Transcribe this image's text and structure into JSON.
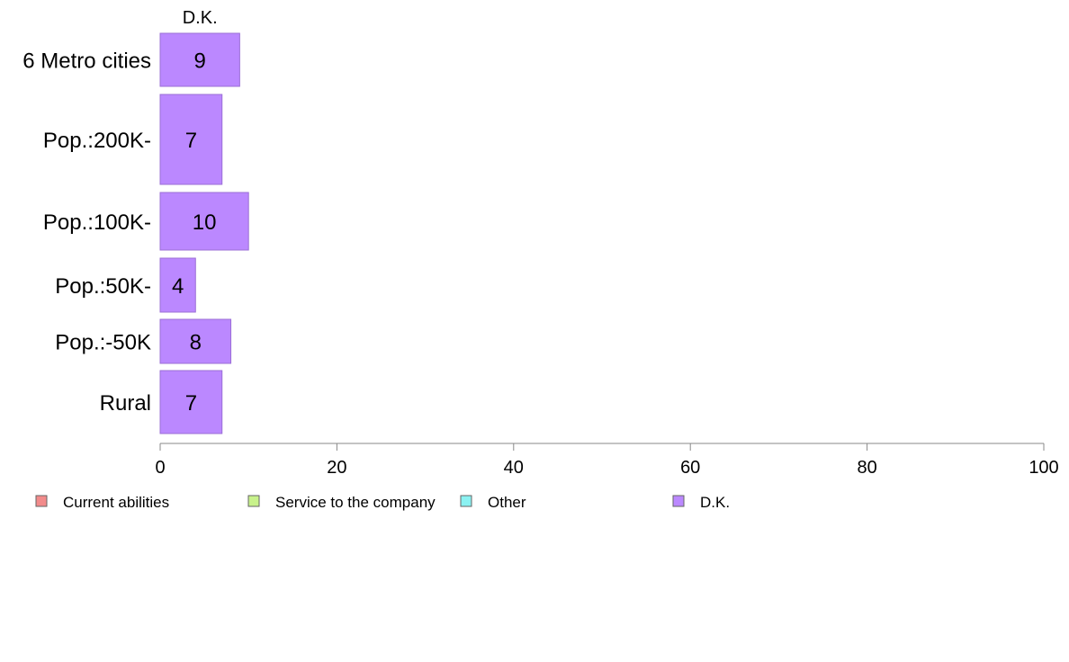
{
  "chart_data": {
    "type": "bar",
    "orientation": "horizontal",
    "stacked": true,
    "categories": [
      "6 Metro cities",
      "Pop.:200K-",
      "Pop.:100K-",
      "Pop.:50K-",
      "Pop.:-50K",
      "Rural"
    ],
    "series": [
      {
        "name": "Current abilities",
        "color": "#f28b8b",
        "values": [
          null,
          null,
          null,
          null,
          null,
          null
        ]
      },
      {
        "name": "Service to the company",
        "color": "#c8f28b",
        "values": [
          null,
          null,
          null,
          null,
          null,
          null
        ]
      },
      {
        "name": "Other",
        "color": "#8bf2f2",
        "values": [
          null,
          null,
          null,
          null,
          null,
          null
        ]
      },
      {
        "name": "D.K.",
        "color": "#bb88ff",
        "values": [
          9,
          7,
          10,
          4,
          8,
          7
        ]
      }
    ],
    "bar_labels": [
      "9",
      "7",
      "10",
      "4",
      "8",
      "7"
    ],
    "top_series_label": "D.K.",
    "xlim": [
      0,
      100
    ],
    "xticks": [
      0,
      20,
      40,
      60,
      80,
      100
    ],
    "xlabel": "",
    "ylabel": "",
    "title": "",
    "grid": false,
    "legend_position": "bottom"
  }
}
